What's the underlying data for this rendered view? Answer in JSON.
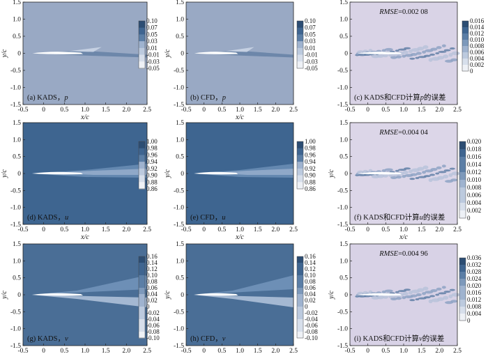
{
  "chart_data": [
    {
      "type": "heatmap",
      "caption_prefix": "(a) KADS，",
      "caption_var": "p",
      "xlabel": "x/c",
      "ylabel": "y/c",
      "xlim": [
        -0.5,
        2.5
      ],
      "ylim": [
        -1.5,
        1.5
      ],
      "xticks": [
        "-0.5",
        "0",
        "0.5",
        "1.0",
        "1.5",
        "2.0",
        "2.5"
      ],
      "yticks": [
        "1.5",
        "1.0",
        "0.5",
        "0",
        "-0.5",
        "-1.0",
        "-1.5"
      ],
      "colorbar": [
        "0.10",
        "0.07",
        "0.05",
        "0.03",
        "0.01",
        "-0.01",
        "-0.03",
        "-0.05"
      ],
      "field": "pressure",
      "background": "#99a9c4",
      "rmse": null
    },
    {
      "type": "heatmap",
      "caption_prefix": "(b) CFD，",
      "caption_var": "p",
      "xlabel": "x/c",
      "ylabel": "y/c",
      "xlim": [
        -0.5,
        2.5
      ],
      "ylim": [
        -1.5,
        1.5
      ],
      "xticks": [
        "-0.5",
        "0",
        "0.5",
        "1.0",
        "1.5",
        "2.0",
        "2.5"
      ],
      "yticks": [
        "1.5",
        "1.0",
        "0.5",
        "0",
        "-0.5",
        "-1.0",
        "-1.5"
      ],
      "colorbar": [
        "0.10",
        "0.07",
        "0.05",
        "0.03",
        "0.01",
        "-0.01",
        "-0.03",
        "-0.05"
      ],
      "field": "pressure",
      "background": "#99a9c4",
      "rmse": null
    },
    {
      "type": "heatmap",
      "caption_prefix": "(c) KADS和CFD计算",
      "caption_var": "p",
      "caption_suffix": "的误差",
      "xlabel": "",
      "ylabel": "",
      "xlim": [
        -0.5,
        2.5
      ],
      "ylim": [
        -1.5,
        1.5
      ],
      "xticks": [
        "-0.5",
        "0",
        "0.5",
        "1.0",
        "1.5",
        "2.0",
        "2.5"
      ],
      "yticks": [
        "1.5",
        "1.0",
        "0.5",
        "0",
        "-0.5",
        "-1.0",
        "-1.5"
      ],
      "colorbar": [
        "0.016",
        "0.014",
        "0.012",
        "0.010",
        "0.008",
        "0.006",
        "0.004",
        "0.002",
        "0"
      ],
      "field": "error",
      "background": "#d9d3e6",
      "rmse_label": "RMSE",
      "rmse": "=0.002 08"
    },
    {
      "type": "heatmap",
      "caption_prefix": "(d) KADS，",
      "caption_var": "u",
      "xlabel": "x/c",
      "ylabel": "y/c",
      "xlim": [
        -0.5,
        2.5
      ],
      "ylim": [
        -1.5,
        1.5
      ],
      "xticks": [
        "-0.5",
        "0",
        "0.5",
        "1.0",
        "1.5",
        "2.0",
        "2.5"
      ],
      "yticks": [
        "1.5",
        "1.0",
        "0.5",
        "0",
        "-0.5",
        "-1.0",
        "-1.5"
      ],
      "colorbar": [
        "1.00",
        "0.98",
        "0.96",
        "0.94",
        "0.92",
        "0.90",
        "0.88",
        "0.86"
      ],
      "field": "velocity_u",
      "background": "#3e6590",
      "rmse": null
    },
    {
      "type": "heatmap",
      "caption_prefix": "(e) CFD，",
      "caption_var": "u",
      "xlabel": "x/c",
      "ylabel": "y/c",
      "xlim": [
        -0.5,
        2.5
      ],
      "ylim": [
        -1.5,
        1.5
      ],
      "xticks": [
        "-0.5",
        "0",
        "0.5",
        "1.0",
        "1.5",
        "2.0",
        "2.5"
      ],
      "yticks": [
        "1.5",
        "1.0",
        "0.5",
        "0",
        "-0.5",
        "-1.0",
        "-1.5"
      ],
      "colorbar": [
        "1.00",
        "0.98",
        "0.96",
        "0.94",
        "0.92",
        "0.90",
        "0.88",
        "0.86"
      ],
      "field": "velocity_u",
      "background": "#3e6590",
      "rmse": null
    },
    {
      "type": "heatmap",
      "caption_prefix": "(f) KADS和CFD计算",
      "caption_var": "u",
      "caption_suffix": "的误差",
      "xlabel": "x/c",
      "ylabel": "y/c",
      "xlim": [
        -0.5,
        2.5
      ],
      "ylim": [
        -1.5,
        1.5
      ],
      "xticks": [
        "-0.5",
        "0",
        "0.5",
        "1.0",
        "1.5",
        "2.0",
        "2.5"
      ],
      "yticks": [
        "1.5",
        "1.0",
        "0.5",
        "0",
        "-0.5",
        "-1.0",
        "-1.5"
      ],
      "colorbar": [
        "0.020",
        "0.018",
        "0.016",
        "0.014",
        "0.012",
        "0.010",
        "0.008",
        "0.006",
        "0.004",
        "0.002",
        "0"
      ],
      "field": "error",
      "background": "#dcd6e8",
      "rmse_label": "RMSE",
      "rmse": "=0.004 04"
    },
    {
      "type": "heatmap",
      "caption_prefix": "(g) KADS，",
      "caption_var": "v",
      "xlabel": "x/c",
      "ylabel": "y/c",
      "xlim": [
        -0.5,
        2.5
      ],
      "ylim": [
        -1.5,
        1.5
      ],
      "xticks": [
        "-0.5",
        "0",
        "0.5",
        "1.0",
        "1.5",
        "2.0",
        "2.5"
      ],
      "yticks": [
        "1.5",
        "1.0",
        "0.5",
        "0",
        "-0.5",
        "-1.0",
        "-1.5"
      ],
      "colorbar": [
        "0.16",
        "0.14",
        "0.12",
        "0.10",
        "0.08",
        "0.06",
        "0.04",
        "0.02",
        "0",
        "-0.02",
        "-0.04",
        "-0.06",
        "-0.08",
        "-0.10"
      ],
      "field": "velocity_v",
      "background": "#4a6e96",
      "rmse": null
    },
    {
      "type": "heatmap",
      "caption_prefix": "(h) CFD，",
      "caption_var": "v",
      "xlabel": "x/c",
      "ylabel": "y/c",
      "xlim": [
        -0.5,
        2.5
      ],
      "ylim": [
        -1.5,
        1.5
      ],
      "xticks": [
        "-0.5",
        "0",
        "0.5",
        "1.0",
        "1.5",
        "2.0",
        "2.5"
      ],
      "yticks": [
        "1.5",
        "1.0",
        "0.5",
        "0",
        "-0.5",
        "-1.0",
        "-1.5"
      ],
      "colorbar": [
        "0.16",
        "0.14",
        "0.12",
        "0.10",
        "0.08",
        "0.06",
        "0.04",
        "0.02",
        "0",
        "-0.02",
        "-0.04",
        "-0.06",
        "-0.08",
        "-0.10"
      ],
      "field": "velocity_v",
      "background": "#4a6e96",
      "rmse": null
    },
    {
      "type": "heatmap",
      "caption_prefix": "(i) KADS和CFD计算",
      "caption_var": "v",
      "caption_suffix": "的误差",
      "xlabel": "x/c",
      "ylabel": "y/c",
      "xlim": [
        -0.5,
        2.5
      ],
      "ylim": [
        -1.5,
        1.5
      ],
      "xticks": [
        "-0.5",
        "0",
        "0.5",
        "1.0",
        "1.5",
        "2.0",
        "2.5"
      ],
      "yticks": [
        "1.5",
        "1.0",
        "0.5",
        "0",
        "-0.5",
        "-1.0",
        "-1.5"
      ],
      "colorbar": [
        "0.036",
        "0.032",
        "0.028",
        "0.024",
        "0.020",
        "0.016",
        "0.012",
        "0.008",
        "0.004",
        "0"
      ],
      "field": "error",
      "background": "#d8d2e6",
      "rmse_label": "RMSE",
      "rmse": "=0.004 96"
    }
  ]
}
